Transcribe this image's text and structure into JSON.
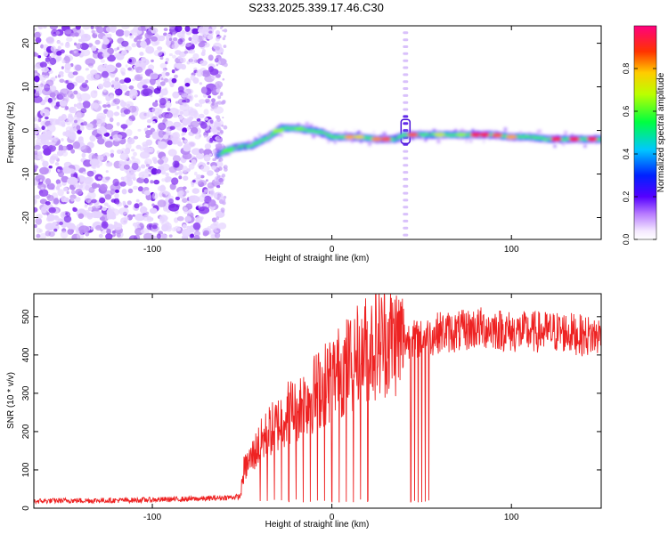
{
  "title": "S233.2025.339.17.46.C30",
  "chart_data": [
    {
      "type": "heatmap",
      "name": "spectrogram",
      "xlabel": "Height of straight line (km)",
      "ylabel": "Frequency (Hz)",
      "xlim": [
        -166,
        150
      ],
      "ylim": [
        -25,
        24
      ],
      "x_ticks": [
        -100,
        0,
        100
      ],
      "x_tick_labels": [
        "-100",
        "0",
        "100"
      ],
      "y_ticks": [
        -20,
        -10,
        0,
        10,
        20
      ],
      "y_tick_labels": [
        "-20",
        "-10",
        "0",
        "10",
        "20"
      ],
      "noise_region_x": [
        -166,
        -61
      ],
      "burst_line_x": 41,
      "ridge": {
        "x": [
          -63,
          -55,
          -45,
          -35,
          -28,
          -20,
          -12,
          -5,
          0,
          8,
          15,
          25,
          35,
          40,
          45,
          60,
          75,
          90,
          100,
          110,
          120,
          135,
          150
        ],
        "y": [
          -5.5,
          -4,
          -3.5,
          -1.5,
          0.5,
          0.5,
          0,
          -0.5,
          -1.5,
          -1.5,
          -1.5,
          -2,
          -2,
          -1,
          -1,
          -1,
          -1,
          -1,
          -1.5,
          -1.5,
          -2,
          -2,
          -2
        ]
      },
      "colorbar": {
        "label": "Normalized spectral amplitude",
        "range": [
          0,
          1
        ],
        "ticks": [
          0,
          0.2,
          0.4,
          0.6,
          0.8
        ],
        "tick_labels": [
          "0.0",
          "0.2",
          "0.4",
          "0.6",
          "0.8"
        ]
      }
    },
    {
      "type": "line",
      "name": "snr",
      "xlabel": "Height of straight line (km)",
      "ylabel": "SNR (10 * v/v)",
      "xlim": [
        -166,
        150
      ],
      "ylim": [
        0,
        560
      ],
      "x_ticks": [
        -100,
        0,
        100
      ],
      "x_tick_labels": [
        "-100",
        "0",
        "100"
      ],
      "y_ticks": [
        0,
        100,
        200,
        300,
        400,
        500
      ],
      "y_tick_labels": [
        "0",
        "100",
        "200",
        "300",
        "400",
        "500"
      ],
      "color": "#ee2222",
      "series": [
        {
          "name": "SNR",
          "x": [
            -166,
            -150,
            -130,
            -110,
            -90,
            -70,
            -51,
            -49,
            -45,
            -40,
            -35,
            -30,
            -25,
            -20,
            -15,
            -10,
            -5,
            0,
            5,
            10,
            15,
            20,
            25,
            30,
            35,
            40,
            41,
            45,
            50,
            55,
            60,
            70,
            80,
            90,
            100,
            110,
            120,
            130,
            140,
            150
          ],
          "y": [
            18,
            20,
            20,
            21,
            23,
            25,
            30,
            100,
            130,
            170,
            200,
            220,
            250,
            260,
            280,
            300,
            320,
            340,
            360,
            380,
            400,
            420,
            430,
            440,
            440,
            440,
            440,
            440,
            440,
            450,
            460,
            460,
            470,
            470,
            460,
            460,
            460,
            460,
            450,
            450
          ]
        }
      ],
      "dropout_x": [
        -40,
        -36,
        -32,
        -28,
        -24,
        -20,
        -16,
        -12,
        -8,
        -4,
        0,
        4,
        8,
        12,
        16,
        20,
        44,
        46,
        48,
        50,
        52,
        54
      ],
      "dropout_min": 15
    }
  ]
}
